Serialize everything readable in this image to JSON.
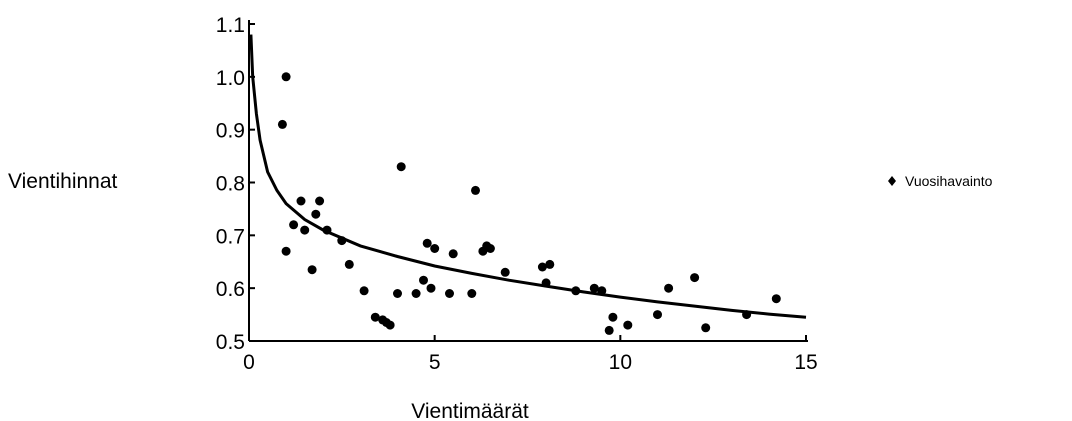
{
  "chart_data": {
    "type": "scatter",
    "title": "",
    "xlabel": "Vientimäärät",
    "ylabel": "Vientihinnat",
    "xlim": [
      0,
      15
    ],
    "ylim": [
      0.5,
      1.1
    ],
    "x_ticks": [
      "0",
      "5",
      "10",
      "15"
    ],
    "y_ticks": [
      "0.5",
      "0.6",
      "0.7",
      "0.8",
      "0.9",
      "1.0",
      "1.1"
    ],
    "grid": false,
    "legend_position": "right",
    "series": [
      {
        "name": "Vuosihavainto",
        "kind": "scatter",
        "color": "#000000",
        "points": [
          [
            0.9,
            0.91
          ],
          [
            1.0,
            1.0
          ],
          [
            1.0,
            0.67
          ],
          [
            1.2,
            0.72
          ],
          [
            1.4,
            0.765
          ],
          [
            1.5,
            0.71
          ],
          [
            1.7,
            0.635
          ],
          [
            1.8,
            0.74
          ],
          [
            1.9,
            0.765
          ],
          [
            2.1,
            0.71
          ],
          [
            2.5,
            0.69
          ],
          [
            2.7,
            0.645
          ],
          [
            3.1,
            0.595
          ],
          [
            3.4,
            0.545
          ],
          [
            3.6,
            0.54
          ],
          [
            3.7,
            0.535
          ],
          [
            3.8,
            0.53
          ],
          [
            4.0,
            0.59
          ],
          [
            4.1,
            0.83
          ],
          [
            4.5,
            0.59
          ],
          [
            4.7,
            0.615
          ],
          [
            4.8,
            0.685
          ],
          [
            4.9,
            0.6
          ],
          [
            5.0,
            0.675
          ],
          [
            5.4,
            0.59
          ],
          [
            5.5,
            0.665
          ],
          [
            6.0,
            0.59
          ],
          [
            6.1,
            0.785
          ],
          [
            6.3,
            0.67
          ],
          [
            6.4,
            0.68
          ],
          [
            6.5,
            0.675
          ],
          [
            6.9,
            0.63
          ],
          [
            7.9,
            0.64
          ],
          [
            8.0,
            0.61
          ],
          [
            8.1,
            0.645
          ],
          [
            8.8,
            0.595
          ],
          [
            9.3,
            0.6
          ],
          [
            9.5,
            0.595
          ],
          [
            9.7,
            0.52
          ],
          [
            9.8,
            0.545
          ],
          [
            10.2,
            0.53
          ],
          [
            11.0,
            0.55
          ],
          [
            11.3,
            0.6
          ],
          [
            12.0,
            0.62
          ],
          [
            12.3,
            0.525
          ],
          [
            13.4,
            0.55
          ],
          [
            14.2,
            0.58
          ]
        ]
      },
      {
        "kind": "line",
        "color": "#000000",
        "points": [
          [
            0.05,
            1.08
          ],
          [
            0.1,
            1.0
          ],
          [
            0.2,
            0.93
          ],
          [
            0.3,
            0.88
          ],
          [
            0.5,
            0.82
          ],
          [
            0.75,
            0.785
          ],
          [
            1.0,
            0.76
          ],
          [
            1.5,
            0.73
          ],
          [
            2.0,
            0.71
          ],
          [
            3.0,
            0.68
          ],
          [
            4.0,
            0.66
          ],
          [
            5.0,
            0.642
          ],
          [
            6.0,
            0.628
          ],
          [
            7.0,
            0.615
          ],
          [
            8.0,
            0.604
          ],
          [
            9.0,
            0.593
          ],
          [
            10.0,
            0.583
          ],
          [
            11.0,
            0.574
          ],
          [
            12.0,
            0.566
          ],
          [
            13.0,
            0.558
          ],
          [
            14.0,
            0.551
          ],
          [
            15.0,
            0.545
          ]
        ]
      }
    ]
  }
}
